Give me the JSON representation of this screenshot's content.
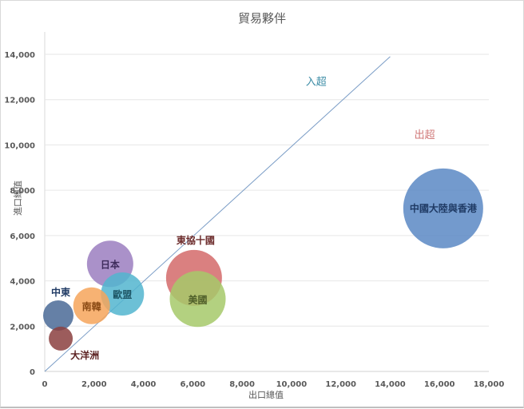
{
  "chart_data": {
    "type": "bubble",
    "title": "貿易夥伴",
    "xlabel": "出口總值",
    "ylabel": "進口總值",
    "xlim": [
      0,
      18000
    ],
    "ylim": [
      0,
      14000
    ],
    "x_ticks": [
      "0",
      "2,000",
      "4,000",
      "6,000",
      "8,000",
      "10,000",
      "12,000",
      "14,000",
      "16,000",
      "18,000"
    ],
    "y_ticks": [
      "0",
      "2,000",
      "4,000",
      "6,000",
      "8,000",
      "10,000",
      "12,000",
      "14,000"
    ],
    "grid": "horizontal",
    "series": [
      {
        "name": "中國大陸與香港",
        "x": 16150,
        "y": 7200,
        "size": 50,
        "color": "#5B88C4",
        "label_color": "#1F3A64"
      },
      {
        "name": "東協十國",
        "x": 6050,
        "y": 4130,
        "size": 35,
        "color": "#D46A6A",
        "label_color": "#6B2A2A"
      },
      {
        "name": "美國",
        "x": 6200,
        "y": 3200,
        "size": 35,
        "color": "#A6C96A",
        "label_color": "#4F5F2A"
      },
      {
        "name": "日本",
        "x": 2650,
        "y": 4750,
        "size": 29,
        "color": "#9B7EC0",
        "label_color": "#3E2C5C"
      },
      {
        "name": "歐盟",
        "x": 3150,
        "y": 3420,
        "size": 27,
        "color": "#52B5CF",
        "label_color": "#1E5666"
      },
      {
        "name": "南韓",
        "x": 1900,
        "y": 2900,
        "size": 23,
        "color": "#F6A45A",
        "label_color": "#8A4A14"
      },
      {
        "name": "中東",
        "x": 550,
        "y": 2470,
        "size": 19,
        "color": "#4A6A96",
        "label_color": "#1F3A64"
      },
      {
        "name": "大洋洲",
        "x": 650,
        "y": 1450,
        "size": 15,
        "color": "#8B3F3F",
        "label_color": "#5A1F1F"
      }
    ],
    "reference_line": {
      "from": [
        0,
        0
      ],
      "to": [
        14000,
        13900
      ],
      "color": "#7A9CC6"
    },
    "annotations": [
      {
        "text": "入超",
        "x": 11000,
        "y": 12650,
        "color": "#3A8BA5"
      },
      {
        "text": "出超",
        "x": 15400,
        "y": 10300,
        "color": "#D07878"
      }
    ]
  }
}
